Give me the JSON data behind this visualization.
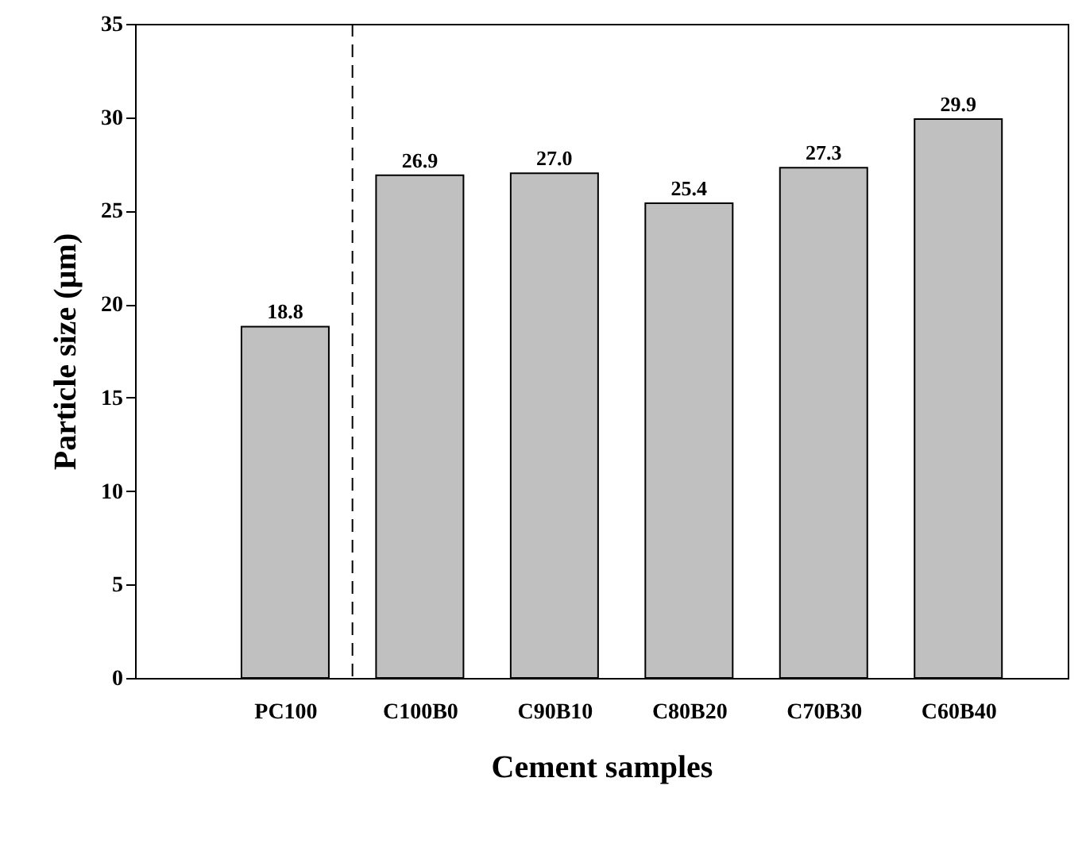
{
  "chart_data": {
    "type": "bar",
    "xlabel": "Cement samples",
    "ylabel": "Particle size (µm)",
    "categories": [
      "PC100",
      "C100B0",
      "C90B10",
      "C80B20",
      "C70B30",
      "C60B40"
    ],
    "values": [
      18.8,
      26.9,
      27.0,
      25.4,
      27.3,
      29.9
    ],
    "value_labels": [
      "18.8",
      "26.9",
      "27.0",
      "25.4",
      "27.3",
      "29.9"
    ],
    "color": "#c0c0c0",
    "ylim": [
      0,
      35
    ],
    "yticks": [
      0,
      5,
      10,
      15,
      20,
      25,
      30,
      35
    ],
    "grid": false
  }
}
